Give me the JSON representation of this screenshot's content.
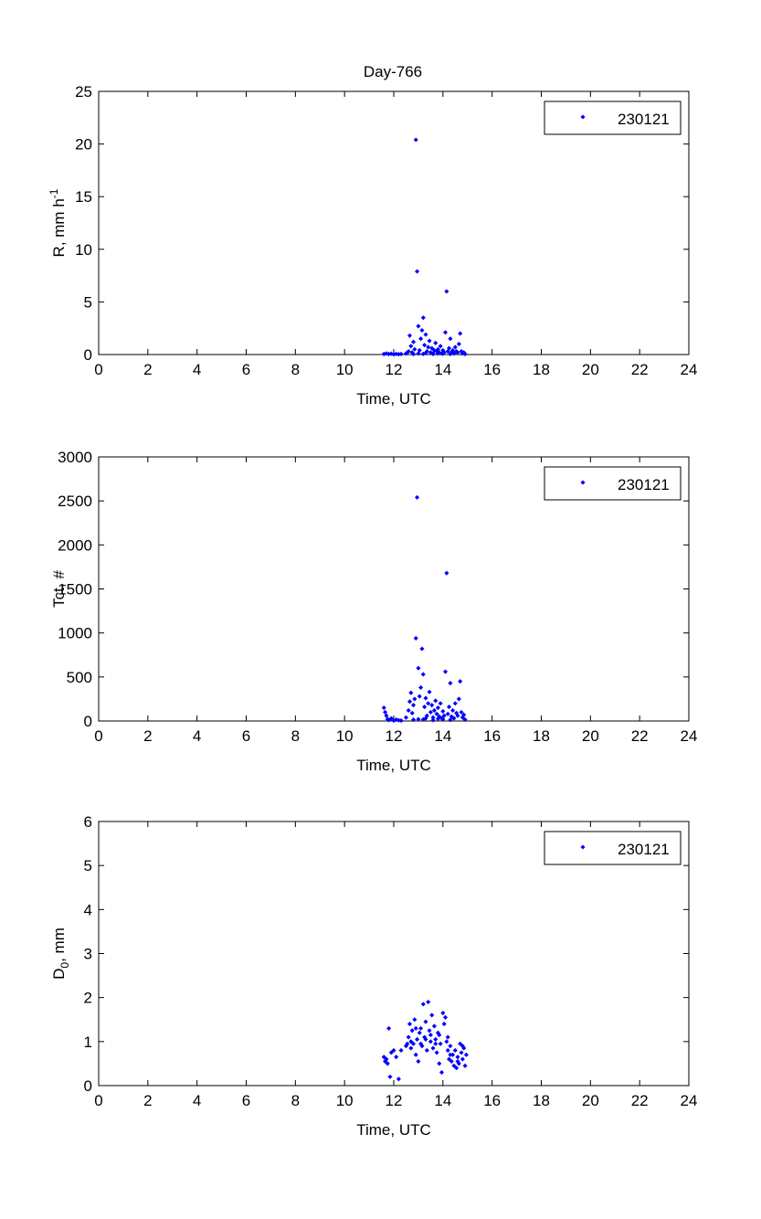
{
  "figure": {
    "title": "Day-766",
    "marker_color": "#0000ff"
  },
  "chart_data": [
    {
      "type": "scatter",
      "title": "Day-766",
      "xlabel": "Time, UTC",
      "ylabel": "R, mm h",
      "ylabel_superscript": "-1",
      "ylabel_subscript": "",
      "ylabel_suffix": "",
      "xlim": [
        0,
        24
      ],
      "ylim": [
        0,
        25
      ],
      "xticks": [
        0,
        2,
        4,
        6,
        8,
        10,
        12,
        14,
        16,
        18,
        20,
        22,
        24
      ],
      "yticks": [
        0,
        5,
        10,
        15,
        20,
        25
      ],
      "grid": false,
      "legend_position": "top-right",
      "series": [
        {
          "name": "230121",
          "color": "#0000ff",
          "points": [
            [
              11.6,
              0.05
            ],
            [
              11.7,
              0.1
            ],
            [
              11.8,
              0.05
            ],
            [
              11.9,
              0.08
            ],
            [
              12.0,
              0.02
            ],
            [
              12.1,
              0.06
            ],
            [
              12.2,
              0.03
            ],
            [
              12.3,
              0.05
            ],
            [
              12.5,
              0.1
            ],
            [
              12.6,
              0.3
            ],
            [
              12.65,
              1.8
            ],
            [
              12.7,
              0.8
            ],
            [
              12.75,
              0.2
            ],
            [
              12.8,
              1.2
            ],
            [
              12.85,
              0.5
            ],
            [
              12.9,
              20.4
            ],
            [
              12.95,
              7.9
            ],
            [
              13.0,
              2.7
            ],
            [
              13.05,
              0.4
            ],
            [
              13.1,
              1.5
            ],
            [
              13.15,
              2.3
            ],
            [
              13.2,
              3.5
            ],
            [
              13.25,
              0.9
            ],
            [
              13.3,
              1.9
            ],
            [
              13.35,
              0.3
            ],
            [
              13.4,
              0.7
            ],
            [
              13.45,
              1.3
            ],
            [
              13.5,
              0.2
            ],
            [
              13.55,
              0.6
            ],
            [
              13.6,
              0.1
            ],
            [
              13.65,
              0.4
            ],
            [
              13.7,
              1.1
            ],
            [
              13.75,
              0.3
            ],
            [
              13.8,
              0.5
            ],
            [
              13.85,
              0.2
            ],
            [
              13.9,
              0.8
            ],
            [
              13.95,
              0.1
            ],
            [
              14.0,
              0.4
            ],
            [
              14.05,
              0.2
            ],
            [
              14.1,
              2.1
            ],
            [
              14.15,
              6.0
            ],
            [
              14.2,
              0.3
            ],
            [
              14.25,
              0.6
            ],
            [
              14.3,
              1.5
            ],
            [
              14.35,
              0.2
            ],
            [
              14.4,
              0.4
            ],
            [
              14.45,
              0.1
            ],
            [
              14.5,
              0.7
            ],
            [
              14.55,
              0.3
            ],
            [
              14.6,
              0.2
            ],
            [
              14.65,
              1.0
            ],
            [
              14.7,
              2.0
            ],
            [
              14.75,
              0.3
            ],
            [
              14.8,
              0.1
            ],
            [
              14.85,
              0.2
            ],
            [
              14.9,
              0.05
            ],
            [
              13.0,
              0.1
            ],
            [
              13.3,
              0.15
            ],
            [
              13.6,
              0.05
            ],
            [
              12.8,
              0.05
            ],
            [
              14.0,
              0.08
            ],
            [
              14.3,
              0.05
            ],
            [
              13.8,
              0.1
            ],
            [
              13.2,
              0.06
            ]
          ]
        }
      ]
    },
    {
      "type": "scatter",
      "title": "",
      "xlabel": "Time, UTC",
      "ylabel": "Tct, #",
      "ylabel_superscript": "",
      "ylabel_subscript": "",
      "ylabel_suffix": "",
      "xlim": [
        0,
        24
      ],
      "ylim": [
        0,
        3000
      ],
      "xticks": [
        0,
        2,
        4,
        6,
        8,
        10,
        12,
        14,
        16,
        18,
        20,
        22,
        24
      ],
      "yticks": [
        0,
        500,
        1000,
        1500,
        2000,
        2500,
        3000
      ],
      "grid": false,
      "legend_position": "top-right",
      "series": [
        {
          "name": "230121",
          "color": "#0000ff",
          "points": [
            [
              11.6,
              150
            ],
            [
              11.65,
              100
            ],
            [
              11.7,
              60
            ],
            [
              11.75,
              20
            ],
            [
              11.8,
              10
            ],
            [
              11.9,
              30
            ],
            [
              12.0,
              5
            ],
            [
              12.1,
              15
            ],
            [
              12.2,
              8
            ],
            [
              12.3,
              5
            ],
            [
              12.5,
              40
            ],
            [
              12.6,
              120
            ],
            [
              12.65,
              220
            ],
            [
              12.7,
              320
            ],
            [
              12.75,
              90
            ],
            [
              12.8,
              180
            ],
            [
              12.85,
              250
            ],
            [
              12.9,
              940
            ],
            [
              12.95,
              2540
            ],
            [
              13.0,
              600
            ],
            [
              13.05,
              280
            ],
            [
              13.1,
              380
            ],
            [
              13.15,
              820
            ],
            [
              13.2,
              530
            ],
            [
              13.25,
              160
            ],
            [
              13.3,
              260
            ],
            [
              13.35,
              60
            ],
            [
              13.4,
              200
            ],
            [
              13.45,
              330
            ],
            [
              13.5,
              100
            ],
            [
              13.55,
              180
            ],
            [
              13.6,
              40
            ],
            [
              13.65,
              120
            ],
            [
              13.7,
              230
            ],
            [
              13.75,
              80
            ],
            [
              13.8,
              150
            ],
            [
              13.85,
              50
            ],
            [
              13.9,
              200
            ],
            [
              13.95,
              30
            ],
            [
              14.0,
              110
            ],
            [
              14.05,
              60
            ],
            [
              14.1,
              560
            ],
            [
              14.15,
              1680
            ],
            [
              14.2,
              80
            ],
            [
              14.25,
              160
            ],
            [
              14.3,
              430
            ],
            [
              14.35,
              50
            ],
            [
              14.4,
              120
            ],
            [
              14.45,
              30
            ],
            [
              14.5,
              200
            ],
            [
              14.55,
              90
            ],
            [
              14.6,
              60
            ],
            [
              14.65,
              250
            ],
            [
              14.7,
              450
            ],
            [
              14.75,
              100
            ],
            [
              14.8,
              40
            ],
            [
              14.85,
              70
            ],
            [
              14.9,
              15
            ],
            [
              13.0,
              20
            ],
            [
              13.3,
              30
            ],
            [
              13.6,
              10
            ],
            [
              12.8,
              15
            ],
            [
              14.0,
              20
            ],
            [
              14.3,
              12
            ],
            [
              13.8,
              25
            ],
            [
              13.2,
              18
            ]
          ]
        }
      ]
    },
    {
      "type": "scatter",
      "title": "",
      "xlabel": "Time, UTC",
      "ylabel": "D",
      "ylabel_superscript": "",
      "ylabel_subscript": "0",
      "ylabel_suffix": ", mm",
      "xlim": [
        0,
        24
      ],
      "ylim": [
        0,
        6
      ],
      "xticks": [
        0,
        2,
        4,
        6,
        8,
        10,
        12,
        14,
        16,
        18,
        20,
        22,
        24
      ],
      "yticks": [
        0,
        1,
        2,
        3,
        4,
        5,
        6
      ],
      "grid": false,
      "legend_position": "top-right",
      "series": [
        {
          "name": "230121",
          "color": "#0000ff",
          "points": [
            [
              11.6,
              0.65
            ],
            [
              11.65,
              0.55
            ],
            [
              11.7,
              0.6
            ],
            [
              11.75,
              0.5
            ],
            [
              11.8,
              1.3
            ],
            [
              11.85,
              0.2
            ],
            [
              11.9,
              0.75
            ],
            [
              12.0,
              0.8
            ],
            [
              12.1,
              0.65
            ],
            [
              12.2,
              0.15
            ],
            [
              12.3,
              0.8
            ],
            [
              12.5,
              0.9
            ],
            [
              12.6,
              1.1
            ],
            [
              12.65,
              1.4
            ],
            [
              12.7,
              1.0
            ],
            [
              12.75,
              1.25
            ],
            [
              12.8,
              0.95
            ],
            [
              12.85,
              1.5
            ],
            [
              12.9,
              0.7
            ],
            [
              12.95,
              1.05
            ],
            [
              13.0,
              0.55
            ],
            [
              13.05,
              1.2
            ],
            [
              13.1,
              1.3
            ],
            [
              13.15,
              0.9
            ],
            [
              13.2,
              1.85
            ],
            [
              13.25,
              1.1
            ],
            [
              13.3,
              1.45
            ],
            [
              13.35,
              0.8
            ],
            [
              13.4,
              1.9
            ],
            [
              13.45,
              1.25
            ],
            [
              13.5,
              1.0
            ],
            [
              13.55,
              1.6
            ],
            [
              13.6,
              0.85
            ],
            [
              13.65,
              1.35
            ],
            [
              13.7,
              1.05
            ],
            [
              13.75,
              0.75
            ],
            [
              13.8,
              1.2
            ],
            [
              13.85,
              0.5
            ],
            [
              13.9,
              0.95
            ],
            [
              13.95,
              0.3
            ],
            [
              14.0,
              1.65
            ],
            [
              14.05,
              1.4
            ],
            [
              14.1,
              1.55
            ],
            [
              14.15,
              1.0
            ],
            [
              14.2,
              0.8
            ],
            [
              14.25,
              0.6
            ],
            [
              14.3,
              0.9
            ],
            [
              14.35,
              0.55
            ],
            [
              14.4,
              0.7
            ],
            [
              14.45,
              0.45
            ],
            [
              14.5,
              0.8
            ],
            [
              14.55,
              0.4
            ],
            [
              14.6,
              0.65
            ],
            [
              14.65,
              0.5
            ],
            [
              14.7,
              0.95
            ],
            [
              14.75,
              0.75
            ],
            [
              14.8,
              0.6
            ],
            [
              14.85,
              0.85
            ],
            [
              14.9,
              0.45
            ],
            [
              14.95,
              0.7
            ],
            [
              12.7,
              0.85
            ],
            [
              13.1,
              0.95
            ],
            [
              13.5,
              1.15
            ],
            [
              14.3,
              0.7
            ],
            [
              12.9,
              1.3
            ],
            [
              13.3,
              1.05
            ],
            [
              13.7,
              0.95
            ],
            [
              14.2,
              1.1
            ],
            [
              14.6,
              0.55
            ],
            [
              14.8,
              0.9
            ],
            [
              12.55,
              0.95
            ],
            [
              13.85,
              1.15
            ]
          ]
        }
      ]
    }
  ]
}
